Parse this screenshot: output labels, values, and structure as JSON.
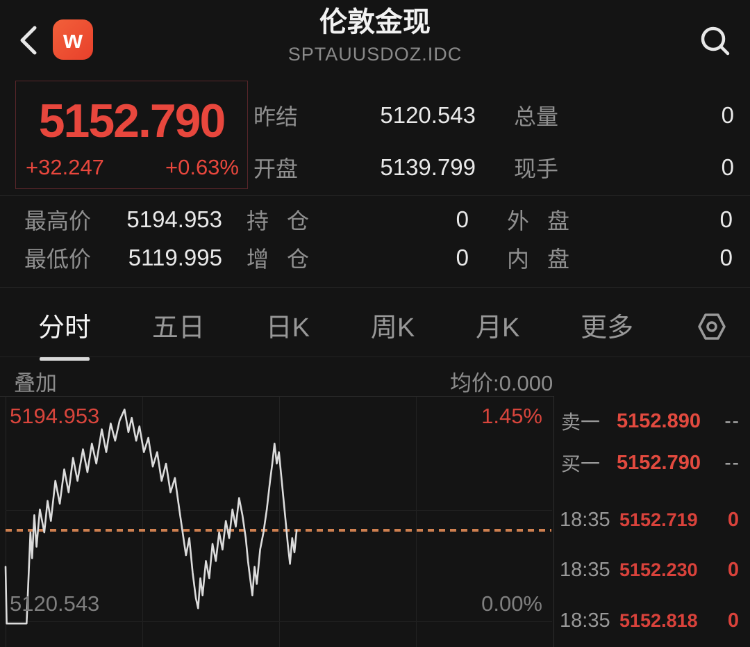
{
  "header": {
    "title": "伦敦金现",
    "subtitle": "SPTAUUSDOZ.IDC",
    "back_icon": "chevron-left",
    "app_icon_letter": "w",
    "search_icon": "magnifier"
  },
  "quote": {
    "last": "5152.790",
    "change": "+32.247",
    "change_pct": "+0.63%",
    "rows": [
      {
        "label1": "昨结",
        "value1": "5120.543",
        "label2": "总量",
        "value2": "0"
      },
      {
        "label1": "开盘",
        "value1": "5139.799",
        "label2": "现手",
        "value2": "0"
      }
    ],
    "stats": [
      [
        {
          "label": "最高价",
          "value": "5194.953"
        },
        {
          "label": "持仓",
          "value": "0"
        },
        {
          "label": "外盘",
          "value": "0"
        }
      ],
      [
        {
          "label": "最低价",
          "value": "5119.995"
        },
        {
          "label": "增仓",
          "value": "0"
        },
        {
          "label": "内盘",
          "value": "0"
        }
      ]
    ]
  },
  "tabs": {
    "items": [
      "分时",
      "五日",
      "日K",
      "周K",
      "月K",
      "更多"
    ],
    "active": "分时",
    "settings_icon": "hexagon-gear"
  },
  "overlay_bar": {
    "overlay_label": "叠加",
    "avg_label": "均价:0.000"
  },
  "chart_data": {
    "type": "line",
    "title": "分时走势 (intraday price line)",
    "high_label": "5194.953",
    "low_label": "5120.543",
    "pct_high_label": "1.45%",
    "pct_low_label": "0.00%",
    "y_high": 5194.953,
    "y_low": 5119.995,
    "prev_close": 5120.543,
    "last_price": 5152.79,
    "ylim": [
      5119.995,
      5196.0
    ],
    "grid": "quarters",
    "points": [
      [
        0.01,
        5140
      ],
      [
        0.012,
        5120.2
      ],
      [
        0.048,
        5120.2
      ],
      [
        0.055,
        5152
      ],
      [
        0.058,
        5143
      ],
      [
        0.062,
        5158
      ],
      [
        0.066,
        5147
      ],
      [
        0.072,
        5160
      ],
      [
        0.08,
        5152
      ],
      [
        0.086,
        5163
      ],
      [
        0.092,
        5156
      ],
      [
        0.1,
        5170
      ],
      [
        0.108,
        5162
      ],
      [
        0.116,
        5174
      ],
      [
        0.124,
        5166
      ],
      [
        0.132,
        5178
      ],
      [
        0.14,
        5170
      ],
      [
        0.15,
        5181
      ],
      [
        0.158,
        5173
      ],
      [
        0.166,
        5183
      ],
      [
        0.174,
        5176
      ],
      [
        0.184,
        5188
      ],
      [
        0.192,
        5180
      ],
      [
        0.2,
        5190
      ],
      [
        0.208,
        5184
      ],
      [
        0.216,
        5191
      ],
      [
        0.225,
        5194.9
      ],
      [
        0.232,
        5187
      ],
      [
        0.238,
        5192
      ],
      [
        0.246,
        5184
      ],
      [
        0.252,
        5189
      ],
      [
        0.26,
        5180
      ],
      [
        0.268,
        5185
      ],
      [
        0.276,
        5175
      ],
      [
        0.284,
        5180
      ],
      [
        0.292,
        5170
      ],
      [
        0.3,
        5176
      ],
      [
        0.308,
        5166
      ],
      [
        0.316,
        5171
      ],
      [
        0.324,
        5160
      ],
      [
        0.33,
        5152
      ],
      [
        0.336,
        5144
      ],
      [
        0.342,
        5150
      ],
      [
        0.348,
        5138
      ],
      [
        0.354,
        5129
      ],
      [
        0.358,
        5125.5
      ],
      [
        0.362,
        5136
      ],
      [
        0.366,
        5130
      ],
      [
        0.372,
        5142
      ],
      [
        0.378,
        5136
      ],
      [
        0.384,
        5148
      ],
      [
        0.39,
        5142
      ],
      [
        0.396,
        5152
      ],
      [
        0.402,
        5146
      ],
      [
        0.408,
        5156
      ],
      [
        0.414,
        5150
      ],
      [
        0.42,
        5160
      ],
      [
        0.426,
        5154
      ],
      [
        0.432,
        5164
      ],
      [
        0.438,
        5158
      ],
      [
        0.444,
        5150
      ],
      [
        0.448,
        5142
      ],
      [
        0.452,
        5136
      ],
      [
        0.456,
        5130
      ],
      [
        0.46,
        5140
      ],
      [
        0.464,
        5134
      ],
      [
        0.47,
        5146
      ],
      [
        0.476,
        5152
      ],
      [
        0.482,
        5160
      ],
      [
        0.488,
        5170
      ],
      [
        0.492,
        5176
      ],
      [
        0.496,
        5183
      ],
      [
        0.5,
        5176
      ],
      [
        0.504,
        5180
      ],
      [
        0.508,
        5172
      ],
      [
        0.512,
        5164
      ],
      [
        0.516,
        5156
      ],
      [
        0.52,
        5148
      ],
      [
        0.524,
        5141
      ],
      [
        0.528,
        5150
      ],
      [
        0.532,
        5145
      ],
      [
        0.536,
        5152.8
      ]
    ]
  },
  "order_book": {
    "rows": [
      {
        "label": "卖一",
        "price": "5152.890",
        "qty": "--"
      },
      {
        "label": "买一",
        "price": "5152.790",
        "qty": "--"
      }
    ]
  },
  "trades": [
    {
      "time": "18:35",
      "price": "5152.719",
      "qty": "0"
    },
    {
      "time": "18:35",
      "price": "5152.230",
      "qty": "0"
    },
    {
      "time": "18:35",
      "price": "5152.818",
      "qty": "0"
    }
  ],
  "colors": {
    "up_red": "#e8473d",
    "accent_orange_dotted": "#cf8050",
    "label_gray": "#8f8f8f",
    "value_white": "#e9e9e9",
    "background": "#141414",
    "app_icon_orange": "#ee4a2d"
  }
}
